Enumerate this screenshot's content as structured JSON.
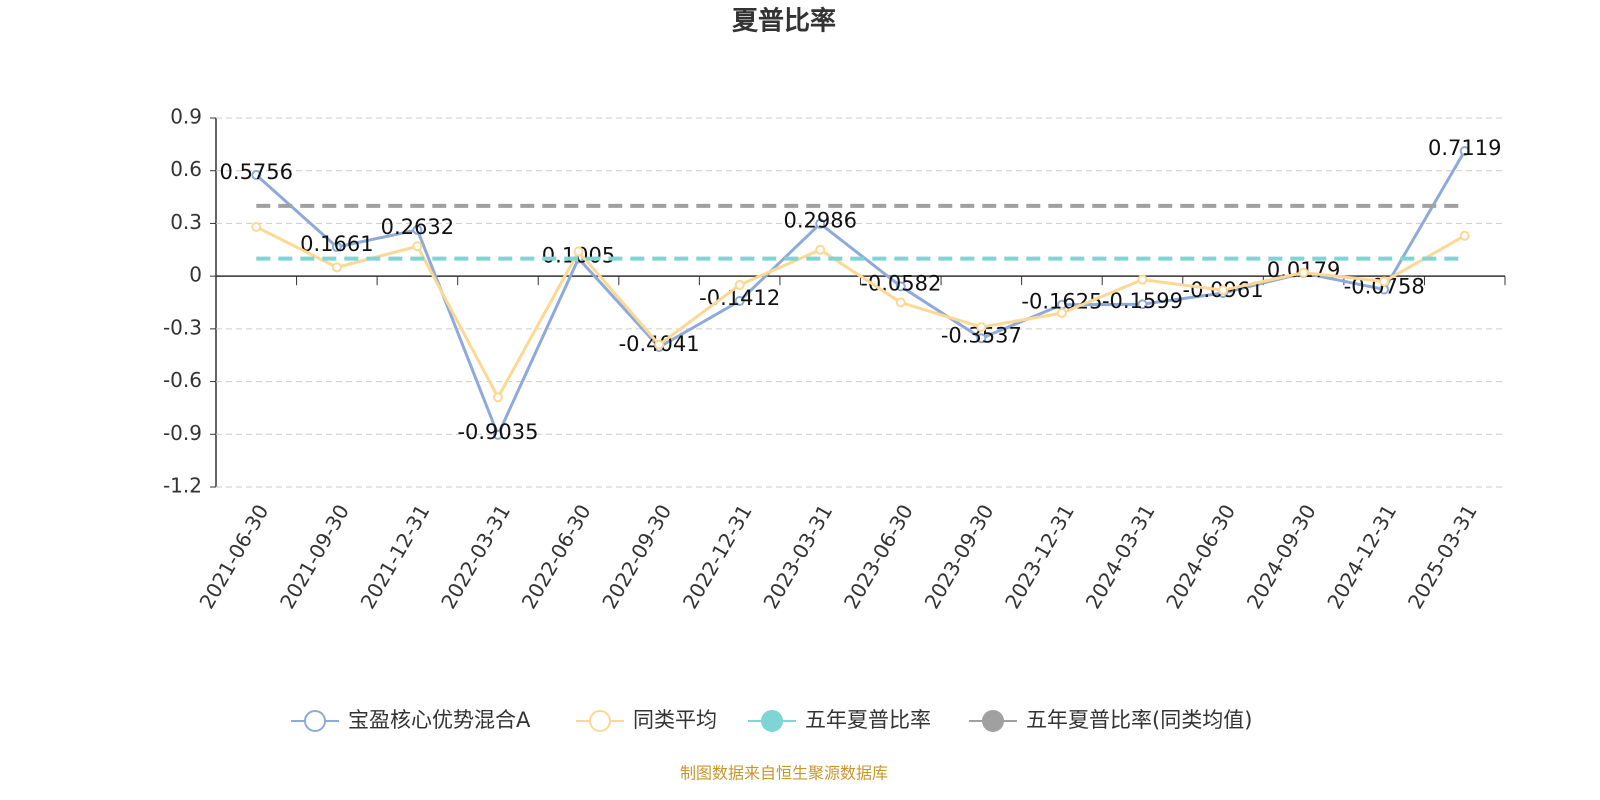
{
  "chart_data": {
    "type": "line",
    "title": "夏普比率",
    "categories": [
      "2021-06-30",
      "2021-09-30",
      "2021-12-31",
      "2022-03-31",
      "2022-06-30",
      "2022-09-30",
      "2022-12-31",
      "2023-03-31",
      "2023-06-30",
      "2023-09-30",
      "2023-12-31",
      "2024-03-31",
      "2024-06-30",
      "2024-09-30",
      "2024-12-31",
      "2025-03-31"
    ],
    "series": [
      {
        "name": "宝盈核心优势混合A",
        "color": "#8eaadb",
        "data_labels": true,
        "values": [
          0.5756,
          0.1661,
          0.2632,
          -0.9035,
          0.1005,
          -0.4041,
          -0.1412,
          0.2986,
          -0.0582,
          -0.3537,
          -0.1625,
          -0.1599,
          -0.0961,
          0.0179,
          -0.0758,
          0.7119
        ]
      },
      {
        "name": "同类平均",
        "color": "#fdd894",
        "values": [
          0.28,
          0.05,
          0.17,
          -0.69,
          0.14,
          -0.39,
          -0.05,
          0.15,
          -0.15,
          -0.29,
          -0.21,
          -0.02,
          -0.08,
          0.02,
          -0.03,
          0.23
        ]
      },
      {
        "name": "五年夏普比率",
        "color": "#7fd4d4",
        "dashed": true,
        "values": [
          0.1,
          0.1,
          0.1,
          0.1,
          0.1,
          0.1,
          0.1,
          0.1,
          0.1,
          0.1,
          0.1,
          0.1,
          0.1,
          0.1,
          0.1,
          0.1
        ]
      },
      {
        "name": "五年夏普比率(同类均值)",
        "color": "#a0a0a0",
        "dashed": true,
        "values": [
          0.4,
          0.4,
          0.4,
          0.4,
          0.4,
          0.4,
          0.4,
          0.4,
          0.4,
          0.4,
          0.4,
          0.4,
          0.4,
          0.4,
          0.4,
          0.4
        ]
      }
    ],
    "ylim": [
      -1.2,
      0.9
    ],
    "yticks": [
      0.9,
      0.6,
      0.3,
      0,
      -0.3,
      -0.6,
      -0.9,
      -1.2
    ],
    "grid": true,
    "legend": "bottom",
    "source": "制图数据来自恒生聚源数据库"
  }
}
